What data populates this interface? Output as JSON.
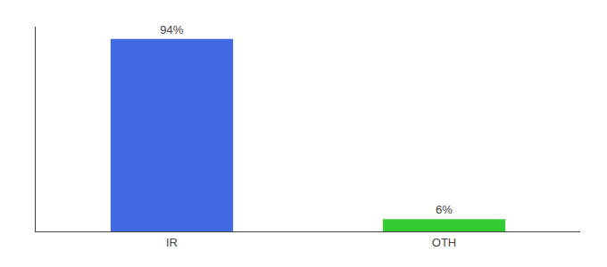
{
  "chart_data": {
    "type": "bar",
    "categories": [
      "IR",
      "OTH"
    ],
    "values": [
      94,
      6
    ],
    "value_labels": [
      "94%",
      "6%"
    ],
    "colors": [
      "#4169e1",
      "#33cc33"
    ],
    "ylim": [
      0,
      100
    ],
    "data_labels": true,
    "tick_labels": "x",
    "grid": false
  }
}
